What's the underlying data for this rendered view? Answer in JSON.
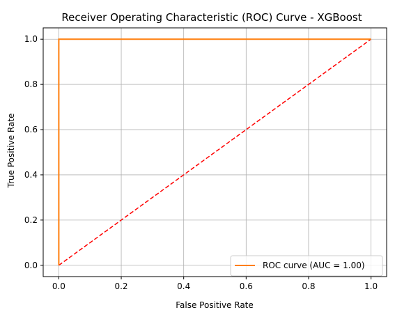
{
  "chart_data": {
    "type": "line",
    "title": "Receiver Operating Characteristic (ROC) Curve - XGBoost",
    "xlabel": "False Positive Rate",
    "ylabel": "True Positive Rate",
    "xlim": [
      -0.05,
      1.05
    ],
    "ylim": [
      -0.05,
      1.05
    ],
    "xticks": [
      0.0,
      0.2,
      0.4,
      0.6,
      0.8,
      1.0
    ],
    "xtick_labels": [
      "0.0",
      "0.2",
      "0.4",
      "0.6",
      "0.8",
      "1.0"
    ],
    "yticks": [
      0.0,
      0.2,
      0.4,
      0.6,
      0.8,
      1.0
    ],
    "ytick_labels": [
      "0.0",
      "0.2",
      "0.4",
      "0.6",
      "0.8",
      "1.0"
    ],
    "grid": true,
    "legend_position": "lower-right",
    "series": [
      {
        "name": "ROC curve (AUC = 1.00)",
        "x": [
          0.0,
          0.0,
          1.0
        ],
        "y": [
          0.0,
          1.0,
          1.0
        ],
        "color": "#ff7f0e",
        "style": "solid",
        "in_legend": true
      },
      {
        "x": [
          0.0,
          1.0
        ],
        "y": [
          0.0,
          1.0
        ],
        "color": "#ff0000",
        "style": "dashed",
        "in_legend": false
      }
    ]
  }
}
